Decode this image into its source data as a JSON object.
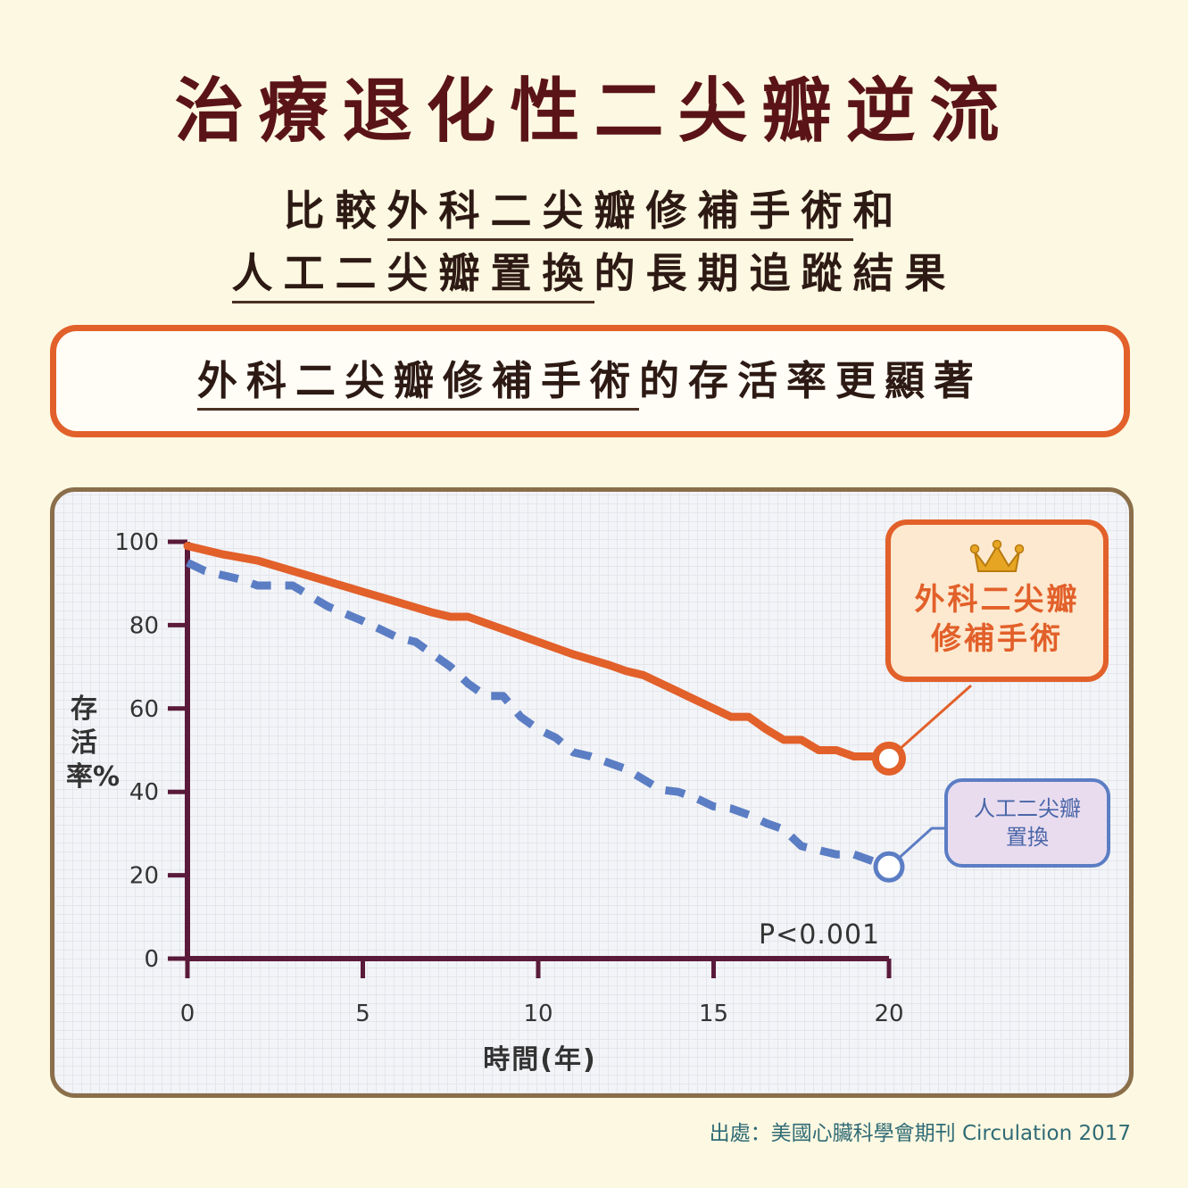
{
  "header": {
    "title": "治療退化性二尖瓣逆流",
    "subtitle_line1_prefix": "比較",
    "subtitle_line1_underlined": "外科二尖瓣修補手術",
    "subtitle_line1_suffix": "和",
    "subtitle_line2_underlined": "人工二尖瓣置換",
    "subtitle_line2_suffix": "的長期追蹤結果"
  },
  "banner": {
    "underlined": "外科二尖瓣修補手術",
    "suffix": "的存活率更顯著"
  },
  "callouts": {
    "repair_line1": "外科二尖瓣",
    "repair_line2": "修補手術",
    "replace_line1": "人工二尖瓣",
    "replace_line2": "置換",
    "crown_icon": "crown-icon"
  },
  "p_value": "P<0.001",
  "source": "出處：美國心臟科學會期刊 Circulation 2017",
  "colors": {
    "repair": "#e2602a",
    "replace": "#5b7dc4",
    "title": "#5a1418"
  },
  "chart_data": {
    "type": "line",
    "xlabel": "時間(年)",
    "ylabel": "存活率%",
    "xlim": [
      0,
      20
    ],
    "ylim": [
      0,
      100
    ],
    "x_ticks": [
      0,
      5,
      10,
      15,
      20
    ],
    "y_ticks": [
      0,
      20,
      40,
      60,
      80,
      100
    ],
    "series": [
      {
        "name": "外科二尖瓣修補手術",
        "style": "solid",
        "color": "#e2602a",
        "x": [
          0,
          1,
          2,
          3,
          4,
          5,
          6,
          7,
          7.5,
          8,
          9,
          10,
          11,
          12,
          12.5,
          13,
          14,
          15,
          15.5,
          16,
          16.5,
          17,
          17.5,
          18,
          18.5,
          19,
          19.5,
          20
        ],
        "y": [
          99,
          97,
          95.5,
          93,
          90.5,
          88,
          85.5,
          83,
          82,
          82,
          79,
          76,
          73,
          70.5,
          69,
          68,
          64,
          60,
          58,
          58,
          55,
          52.5,
          52.5,
          50,
          50,
          48.5,
          48.5,
          48
        ]
      },
      {
        "name": "人工二尖瓣置換",
        "style": "dashed",
        "color": "#5b7dc4",
        "x": [
          0,
          0.5,
          1.5,
          2,
          3,
          3.5,
          4,
          5,
          6,
          6.5,
          7,
          7.5,
          8,
          8.5,
          9,
          9.5,
          10,
          10.5,
          11,
          11.5,
          12,
          12.5,
          13,
          13.5,
          14,
          14.5,
          15,
          15.5,
          16,
          16.5,
          17,
          17.5,
          18,
          18.5,
          19,
          19.5,
          20
        ],
        "y": [
          95,
          93,
          91,
          89.5,
          89.5,
          87,
          84.5,
          81,
          77,
          76,
          73,
          70,
          66,
          63,
          63,
          58,
          55,
          53,
          49.5,
          48.5,
          47,
          45.5,
          43,
          40.5,
          40,
          38.5,
          36.5,
          36,
          34.5,
          32.5,
          31,
          27,
          26,
          25,
          25,
          23.5,
          22
        ]
      }
    ]
  }
}
